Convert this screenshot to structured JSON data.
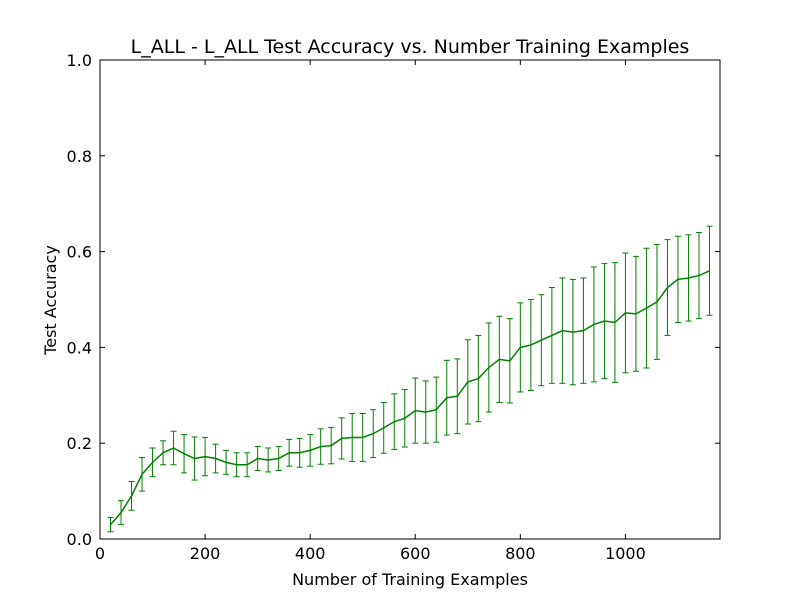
{
  "chart_data": {
    "type": "line",
    "title": "L_ALL - L_ALL Test Accuracy vs. Number Training Examples",
    "xlabel": "Number of Training Examples",
    "ylabel": "Test Accuracy",
    "xlim": [
      0,
      1180
    ],
    "ylim": [
      0.0,
      1.0
    ],
    "x_ticks": [
      0,
      200,
      400,
      600,
      800,
      1000
    ],
    "x_tick_labels": [
      "0",
      "200",
      "400",
      "600",
      "800",
      "1000"
    ],
    "y_ticks": [
      0.0,
      0.2,
      0.4,
      0.6,
      0.8,
      1.0
    ],
    "y_tick_labels": [
      "0.0",
      "0.2",
      "0.4",
      "0.6",
      "0.8",
      "1.0"
    ],
    "grid": false,
    "legend": false,
    "colors": {
      "series": "#008000"
    },
    "series": [
      {
        "x": [
          20,
          40,
          60,
          80,
          100,
          120,
          140,
          160,
          180,
          200,
          220,
          240,
          260,
          280,
          300,
          320,
          340,
          360,
          380,
          400,
          420,
          440,
          460,
          480,
          500,
          520,
          540,
          560,
          580,
          600,
          620,
          640,
          660,
          680,
          700,
          720,
          740,
          760,
          780,
          800,
          820,
          840,
          860,
          880,
          900,
          920,
          940,
          960,
          980,
          1000,
          1020,
          1040,
          1060,
          1080,
          1100,
          1120,
          1140,
          1160
        ],
        "y": [
          0.03,
          0.055,
          0.09,
          0.135,
          0.16,
          0.18,
          0.19,
          0.178,
          0.168,
          0.172,
          0.168,
          0.16,
          0.155,
          0.155,
          0.168,
          0.165,
          0.168,
          0.18,
          0.18,
          0.185,
          0.193,
          0.195,
          0.21,
          0.212,
          0.212,
          0.22,
          0.232,
          0.245,
          0.252,
          0.268,
          0.265,
          0.27,
          0.295,
          0.298,
          0.328,
          0.335,
          0.358,
          0.375,
          0.372,
          0.4,
          0.405,
          0.415,
          0.425,
          0.435,
          0.432,
          0.435,
          0.448,
          0.455,
          0.452,
          0.472,
          0.47,
          0.482,
          0.495,
          0.525,
          0.542,
          0.545,
          0.55,
          0.56
        ],
        "err": [
          0.015,
          0.025,
          0.03,
          0.035,
          0.03,
          0.025,
          0.035,
          0.04,
          0.045,
          0.04,
          0.03,
          0.025,
          0.025,
          0.025,
          0.025,
          0.025,
          0.025,
          0.028,
          0.03,
          0.033,
          0.037,
          0.038,
          0.043,
          0.05,
          0.05,
          0.05,
          0.053,
          0.058,
          0.06,
          0.068,
          0.065,
          0.068,
          0.078,
          0.078,
          0.088,
          0.09,
          0.093,
          0.09,
          0.088,
          0.093,
          0.095,
          0.095,
          0.1,
          0.11,
          0.11,
          0.11,
          0.12,
          0.12,
          0.125,
          0.125,
          0.12,
          0.125,
          0.12,
          0.1,
          0.09,
          0.09,
          0.09,
          0.093
        ]
      }
    ]
  }
}
